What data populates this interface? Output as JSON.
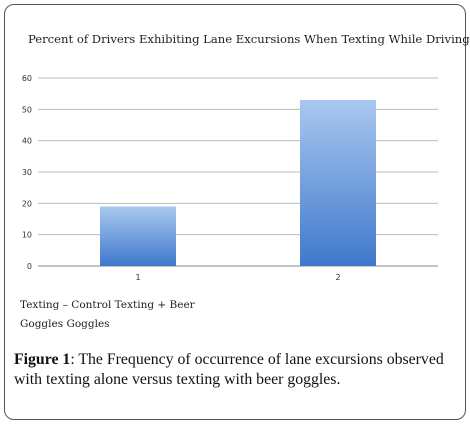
{
  "chart_data": {
    "type": "bar",
    "title": "Percent of Drivers Exhibiting Lane Excursions When Texting While Driving",
    "categories": [
      "1",
      "2"
    ],
    "values": [
      19,
      53
    ],
    "ylim": [
      0,
      60
    ],
    "yticks": [
      0,
      10,
      20,
      30,
      40,
      50,
      60
    ],
    "grid": true,
    "bar_color": "#4f86d6"
  },
  "legend": {
    "line1": "Texting – Control Texting + Beer",
    "line2": "Goggles Goggles"
  },
  "caption": {
    "label": "Figure 1",
    "text": ": The Frequency of occurrence of lane excursions observed with texting alone versus texting with beer goggles."
  }
}
